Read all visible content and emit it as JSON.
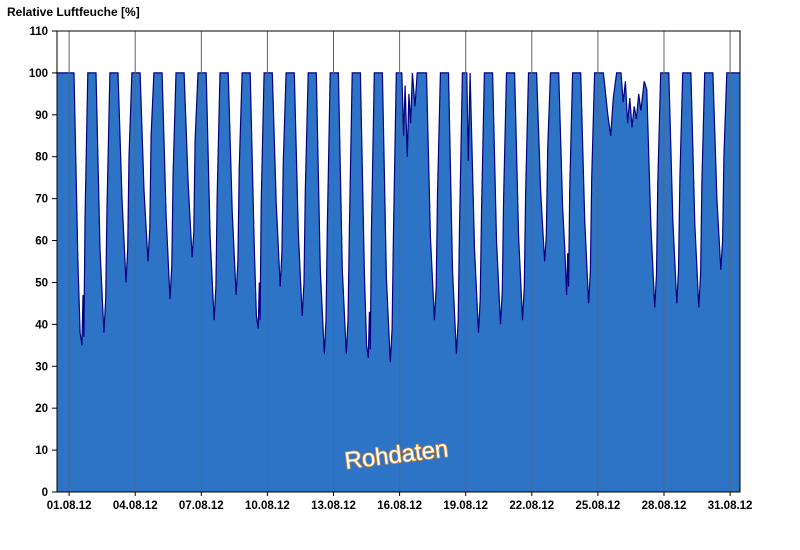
{
  "window": {
    "background": "#FFFFFF"
  },
  "chart_data": {
    "type": "area",
    "title": "Relative Luftfeuche [%]",
    "annotation": "Rohdaten",
    "xlabel": "",
    "ylabel": "Relative Luftfeuche [%]",
    "x_unit": "days since 01.08.12 00:00",
    "xlim": [
      -0.55,
      30.45
    ],
    "ylim": [
      0,
      110
    ],
    "grid": "vertical-only",
    "legend": "none",
    "y_ticks": [
      0,
      10,
      20,
      30,
      40,
      50,
      60,
      70,
      80,
      90,
      100,
      110
    ],
    "x_tick_days": [
      0,
      3,
      6,
      9,
      12,
      15,
      18,
      21,
      24,
      27,
      30
    ],
    "x_tick_labels": [
      "01.08.12",
      "04.08.12",
      "07.08.12",
      "10.08.12",
      "13.08.12",
      "16.08.12",
      "19.08.12",
      "22.08.12",
      "25.08.12",
      "28.08.12",
      "31.08.12"
    ],
    "colors": {
      "fill": "#2E74C6",
      "stroke": "#000080",
      "grid": "#5A6672",
      "axis": "#000000",
      "annotation_fill": "#FFFFFF",
      "annotation_stroke": "#D78A28"
    },
    "series": [
      {
        "name": "Relative Luftfeuche Rohdaten",
        "points": [
          [
            -0.55,
            100
          ],
          [
            0.22,
            100
          ],
          [
            0.4,
            55
          ],
          [
            0.5,
            38
          ],
          [
            0.58,
            35
          ],
          [
            0.63,
            47
          ],
          [
            0.67,
            37
          ],
          [
            0.72,
            65
          ],
          [
            0.85,
            100
          ],
          [
            1.22,
            100
          ],
          [
            1.4,
            58
          ],
          [
            1.58,
            38
          ],
          [
            1.66,
            46
          ],
          [
            1.72,
            68
          ],
          [
            1.85,
            100
          ],
          [
            2.22,
            100
          ],
          [
            2.4,
            70
          ],
          [
            2.58,
            50
          ],
          [
            2.66,
            58
          ],
          [
            2.72,
            80
          ],
          [
            2.85,
            100
          ],
          [
            3.22,
            100
          ],
          [
            3.4,
            72
          ],
          [
            3.58,
            55
          ],
          [
            3.66,
            63
          ],
          [
            3.72,
            85
          ],
          [
            3.85,
            100
          ],
          [
            4.22,
            100
          ],
          [
            4.4,
            66
          ],
          [
            4.58,
            46
          ],
          [
            4.66,
            54
          ],
          [
            4.72,
            76
          ],
          [
            4.85,
            100
          ],
          [
            5.22,
            100
          ],
          [
            5.4,
            74
          ],
          [
            5.58,
            56
          ],
          [
            5.66,
            62
          ],
          [
            5.72,
            84
          ],
          [
            5.85,
            100
          ],
          [
            6.22,
            100
          ],
          [
            6.4,
            61
          ],
          [
            6.58,
            41
          ],
          [
            6.66,
            49
          ],
          [
            6.72,
            71
          ],
          [
            6.85,
            100
          ],
          [
            7.22,
            100
          ],
          [
            7.4,
            67
          ],
          [
            7.58,
            47
          ],
          [
            7.66,
            55
          ],
          [
            7.72,
            77
          ],
          [
            7.85,
            100
          ],
          [
            8.22,
            100
          ],
          [
            8.4,
            59
          ],
          [
            8.5,
            42
          ],
          [
            8.58,
            39
          ],
          [
            8.63,
            50
          ],
          [
            8.67,
            41
          ],
          [
            8.72,
            69
          ],
          [
            8.85,
            100
          ],
          [
            9.22,
            100
          ],
          [
            9.4,
            69
          ],
          [
            9.58,
            49
          ],
          [
            9.66,
            57
          ],
          [
            9.72,
            79
          ],
          [
            9.85,
            100
          ],
          [
            10.22,
            100
          ],
          [
            10.4,
            62
          ],
          [
            10.58,
            42
          ],
          [
            10.66,
            50
          ],
          [
            10.72,
            72
          ],
          [
            10.85,
            100
          ],
          [
            11.22,
            100
          ],
          [
            11.4,
            53
          ],
          [
            11.58,
            33
          ],
          [
            11.66,
            41
          ],
          [
            11.72,
            63
          ],
          [
            11.85,
            100
          ],
          [
            12.22,
            100
          ],
          [
            12.4,
            53
          ],
          [
            12.58,
            33
          ],
          [
            12.66,
            41
          ],
          [
            12.72,
            63
          ],
          [
            12.85,
            100
          ],
          [
            13.22,
            100
          ],
          [
            13.4,
            52
          ],
          [
            13.5,
            35
          ],
          [
            13.58,
            32
          ],
          [
            13.63,
            43
          ],
          [
            13.67,
            34
          ],
          [
            13.72,
            62
          ],
          [
            13.85,
            100
          ],
          [
            14.22,
            100
          ],
          [
            14.4,
            51
          ],
          [
            14.58,
            31
          ],
          [
            14.66,
            39
          ],
          [
            14.72,
            61
          ],
          [
            14.85,
            100
          ],
          [
            15.1,
            100
          ],
          [
            15.18,
            85
          ],
          [
            15.25,
            97
          ],
          [
            15.35,
            80
          ],
          [
            15.42,
            95
          ],
          [
            15.5,
            88
          ],
          [
            15.58,
            100
          ],
          [
            15.7,
            92
          ],
          [
            15.8,
            100
          ],
          [
            16.22,
            100
          ],
          [
            16.4,
            61
          ],
          [
            16.58,
            41
          ],
          [
            16.66,
            49
          ],
          [
            16.72,
            71
          ],
          [
            16.85,
            100
          ],
          [
            17.22,
            100
          ],
          [
            17.4,
            53
          ],
          [
            17.58,
            33
          ],
          [
            17.66,
            41
          ],
          [
            17.72,
            63
          ],
          [
            17.85,
            100
          ],
          [
            18.05,
            100
          ],
          [
            18.12,
            79
          ],
          [
            18.2,
            100
          ],
          [
            18.4,
            58
          ],
          [
            18.58,
            38
          ],
          [
            18.66,
            46
          ],
          [
            18.72,
            68
          ],
          [
            18.85,
            100
          ],
          [
            19.22,
            100
          ],
          [
            19.4,
            60
          ],
          [
            19.58,
            40
          ],
          [
            19.66,
            48
          ],
          [
            19.72,
            70
          ],
          [
            19.85,
            100
          ],
          [
            20.22,
            100
          ],
          [
            20.4,
            61
          ],
          [
            20.58,
            41
          ],
          [
            20.66,
            49
          ],
          [
            20.72,
            71
          ],
          [
            20.85,
            100
          ],
          [
            21.22,
            100
          ],
          [
            21.4,
            72
          ],
          [
            21.58,
            55
          ],
          [
            21.66,
            61
          ],
          [
            21.72,
            82
          ],
          [
            21.85,
            100
          ],
          [
            22.22,
            100
          ],
          [
            22.4,
            68
          ],
          [
            22.5,
            58
          ],
          [
            22.58,
            47
          ],
          [
            22.63,
            57
          ],
          [
            22.67,
            49
          ],
          [
            22.72,
            72
          ],
          [
            22.85,
            100
          ],
          [
            23.22,
            100
          ],
          [
            23.4,
            65
          ],
          [
            23.58,
            45
          ],
          [
            23.66,
            53
          ],
          [
            23.72,
            75
          ],
          [
            23.85,
            100
          ],
          [
            24.25,
            100
          ],
          [
            24.45,
            90
          ],
          [
            24.58,
            85
          ],
          [
            24.7,
            94
          ],
          [
            24.85,
            100
          ],
          [
            25.05,
            100
          ],
          [
            25.15,
            93
          ],
          [
            25.25,
            98
          ],
          [
            25.35,
            88
          ],
          [
            25.45,
            94
          ],
          [
            25.55,
            87
          ],
          [
            25.65,
            92
          ],
          [
            25.75,
            89
          ],
          [
            25.85,
            95
          ],
          [
            25.95,
            91
          ],
          [
            26.1,
            98
          ],
          [
            26.22,
            96
          ],
          [
            26.4,
            64
          ],
          [
            26.58,
            44
          ],
          [
            26.66,
            52
          ],
          [
            26.72,
            74
          ],
          [
            26.85,
            100
          ],
          [
            27.22,
            100
          ],
          [
            27.4,
            65
          ],
          [
            27.58,
            45
          ],
          [
            27.66,
            53
          ],
          [
            27.72,
            75
          ],
          [
            27.85,
            100
          ],
          [
            28.22,
            100
          ],
          [
            28.4,
            64
          ],
          [
            28.58,
            44
          ],
          [
            28.66,
            52
          ],
          [
            28.72,
            74
          ],
          [
            28.85,
            100
          ],
          [
            29.22,
            100
          ],
          [
            29.4,
            70
          ],
          [
            29.58,
            53
          ],
          [
            29.66,
            60
          ],
          [
            29.72,
            80
          ],
          [
            29.85,
            100
          ],
          [
            30.45,
            100
          ]
        ]
      }
    ]
  }
}
